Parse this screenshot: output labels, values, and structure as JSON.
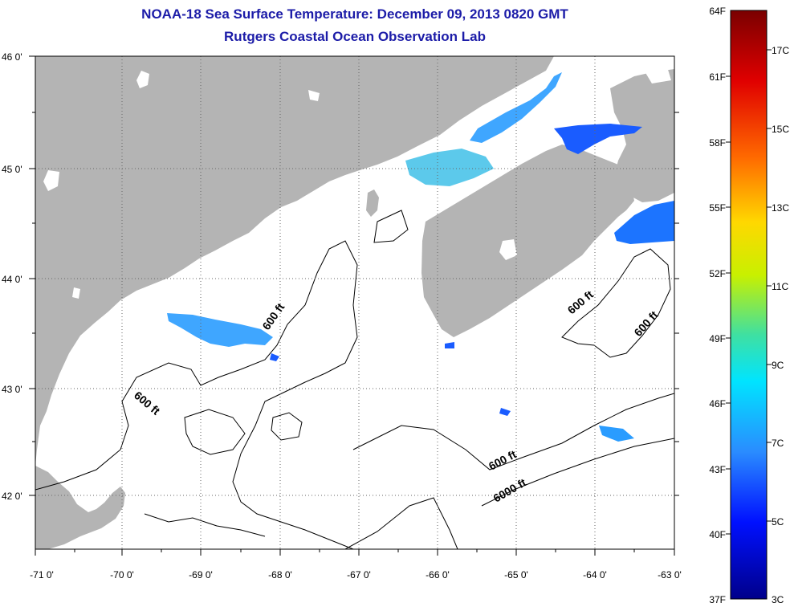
{
  "title": "NOAA-18 Sea Surface Temperature:  December 09, 2013 0820 GMT",
  "subtitle": "Rutgers Coastal Ocean Observation Lab",
  "colors": {
    "land": "#b4b4b4",
    "title": "#1c1ca8"
  },
  "axes": {
    "lon_labels": [
      "-71 0'",
      "-70 0'",
      "-69 0'",
      "-68 0'",
      "-67 0'",
      "-66 0'",
      "-65 0'",
      "-64 0'",
      "-63 0'"
    ],
    "lat_labels": [
      "46 0'",
      "45 0'",
      "44 0'",
      "43 0'",
      "42 0'"
    ]
  },
  "contour_labels": [
    "600 ft",
    "600 ft",
    "600 ft",
    "600 ft",
    "600 ft",
    "6000 ft"
  ],
  "colorbar": {
    "fahrenheit": [
      "64F",
      "61F",
      "58F",
      "55F",
      "52F",
      "49F",
      "46F",
      "43F",
      "40F",
      "37F"
    ],
    "celsius": [
      "17C",
      "15C",
      "13C",
      "11C",
      "9C",
      "7C",
      "5C",
      "3C"
    ]
  }
}
